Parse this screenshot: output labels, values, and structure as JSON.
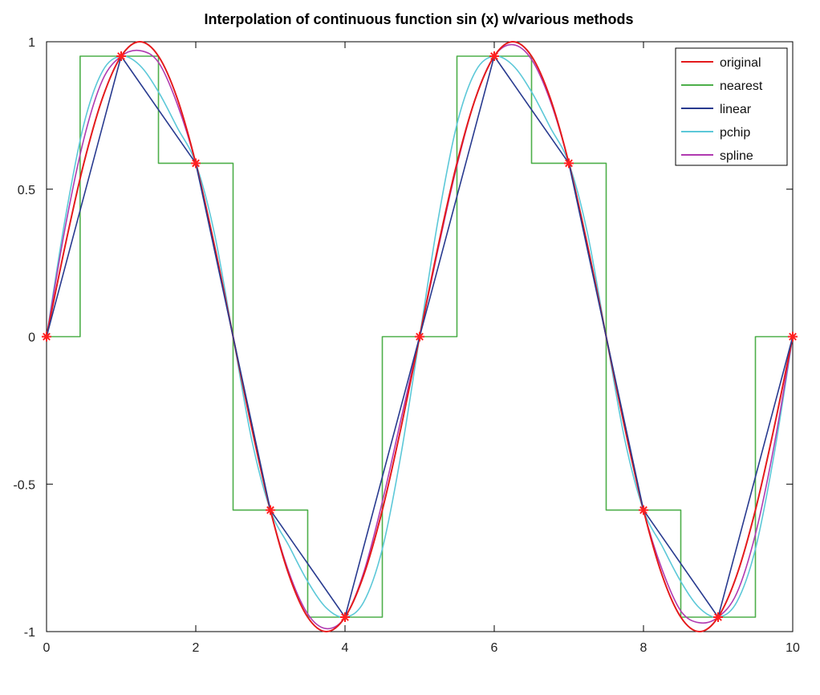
{
  "chart_data": {
    "type": "line",
    "title": "Interpolation of continuous function sin (x) w/various methods",
    "xlabel": "",
    "ylabel": "",
    "xlim": [
      0,
      10
    ],
    "ylim": [
      -1,
      1
    ],
    "xticks": [
      0,
      2,
      4,
      6,
      8,
      10
    ],
    "yticks": [
      -1,
      -0.5,
      0,
      0.5,
      1
    ],
    "xtick_labels": [
      "0",
      "2",
      "4",
      "6",
      "8",
      "10"
    ],
    "ytick_labels": [
      "-1",
      "-0.5",
      "0",
      "0.5",
      "1"
    ],
    "grid": false,
    "legend_position": "top-right",
    "sample_points": {
      "marker": "asterisk",
      "color": "#ff2020",
      "x": [
        0,
        1,
        2,
        3,
        4,
        5,
        6,
        7,
        8,
        9,
        10
      ],
      "y": [
        0,
        0.951,
        0.588,
        -0.588,
        -0.951,
        0,
        0.951,
        0.588,
        -0.588,
        -0.951,
        0
      ]
    },
    "series": [
      {
        "name": "original",
        "color": "#e41a1c",
        "x": [
          0,
          0.25,
          0.5,
          0.75,
          1,
          1.25,
          1.5,
          1.75,
          2,
          2.25,
          2.5,
          2.75,
          3,
          3.25,
          3.5,
          3.75,
          4,
          4.25,
          4.5,
          4.75,
          5,
          5.25,
          5.5,
          5.75,
          6,
          6.25,
          6.5,
          6.75,
          7,
          7.25,
          7.5,
          7.75,
          8,
          8.25,
          8.5,
          8.75,
          9,
          9.25,
          9.5,
          9.75,
          10
        ],
        "y": [
          0,
          0.309,
          0.588,
          0.809,
          0.951,
          1.0,
          0.951,
          0.809,
          0.588,
          0.309,
          0,
          -0.309,
          -0.588,
          -0.809,
          -0.951,
          -1.0,
          -0.951,
          -0.809,
          -0.588,
          -0.309,
          0,
          0.309,
          0.588,
          0.809,
          0.951,
          1.0,
          0.951,
          0.809,
          0.588,
          0.309,
          0,
          -0.309,
          -0.588,
          -0.809,
          -0.951,
          -1.0,
          -0.951,
          -0.809,
          -0.588,
          -0.309,
          0
        ]
      },
      {
        "name": "nearest",
        "color": "#4daf4a",
        "x": [
          0,
          0.45,
          0.45,
          1.5,
          1.5,
          2.5,
          2.5,
          3.5,
          3.5,
          4.5,
          4.5,
          5.5,
          5.5,
          6.5,
          6.5,
          7.5,
          7.5,
          8.5,
          8.5,
          9.5,
          9.5,
          10
        ],
        "y": [
          0,
          0,
          0.951,
          0.951,
          0.588,
          0.588,
          -0.588,
          -0.588,
          -0.951,
          -0.951,
          0,
          0,
          0.951,
          0.951,
          0.588,
          0.588,
          -0.588,
          -0.588,
          -0.951,
          -0.951,
          0,
          0
        ]
      },
      {
        "name": "linear",
        "color": "#283a8f",
        "x": [
          0,
          1,
          2,
          3,
          4,
          5,
          6,
          7,
          8,
          9,
          10
        ],
        "y": [
          0,
          0.951,
          0.588,
          -0.588,
          -0.951,
          0,
          0.951,
          0.588,
          -0.588,
          -0.951,
          0
        ]
      },
      {
        "name": "pchip",
        "color": "#5cc8d8",
        "x": [
          0,
          0.25,
          0.5,
          0.75,
          1,
          1.25,
          1.5,
          1.75,
          2,
          2.25,
          2.5,
          2.75,
          3,
          3.25,
          3.5,
          3.75,
          4,
          4.25,
          4.5,
          4.75,
          5,
          5.25,
          5.5,
          5.75,
          6,
          6.25,
          6.5,
          6.75,
          7,
          7.25,
          7.5,
          7.75,
          8,
          8.25,
          8.5,
          8.75,
          9,
          9.25,
          9.5,
          9.75,
          10
        ],
        "y": [
          0,
          0.4,
          0.72,
          0.9,
          0.951,
          0.92,
          0.83,
          0.71,
          0.588,
          0.35,
          0,
          -0.35,
          -0.588,
          -0.71,
          -0.83,
          -0.92,
          -0.951,
          -0.9,
          -0.72,
          -0.4,
          0,
          0.4,
          0.72,
          0.9,
          0.951,
          0.92,
          0.83,
          0.71,
          0.588,
          0.35,
          0,
          -0.35,
          -0.588,
          -0.71,
          -0.83,
          -0.92,
          -0.951,
          -0.9,
          -0.72,
          -0.4,
          0
        ]
      },
      {
        "name": "spline",
        "color": "#b03ab0",
        "x": [
          0,
          0.25,
          0.5,
          0.75,
          1,
          1.25,
          1.5,
          1.75,
          2,
          2.25,
          2.5,
          2.75,
          3,
          3.25,
          3.5,
          3.75,
          4,
          4.25,
          4.5,
          4.75,
          5,
          5.25,
          5.5,
          5.75,
          6,
          6.25,
          6.5,
          6.75,
          7,
          7.25,
          7.5,
          7.75,
          8,
          8.25,
          8.5,
          8.75,
          9,
          9.25,
          9.5,
          9.75,
          10
        ],
        "y": [
          0,
          0.37,
          0.67,
          0.87,
          0.951,
          0.97,
          0.93,
          0.79,
          0.588,
          0.31,
          0,
          -0.31,
          -0.588,
          -0.8,
          -0.94,
          -0.99,
          -0.951,
          -0.8,
          -0.56,
          -0.28,
          0,
          0.3,
          0.58,
          0.81,
          0.951,
          0.99,
          0.94,
          0.8,
          0.588,
          0.31,
          0,
          -0.31,
          -0.588,
          -0.79,
          -0.93,
          -0.97,
          -0.951,
          -0.87,
          -0.67,
          -0.37,
          0
        ]
      }
    ]
  }
}
